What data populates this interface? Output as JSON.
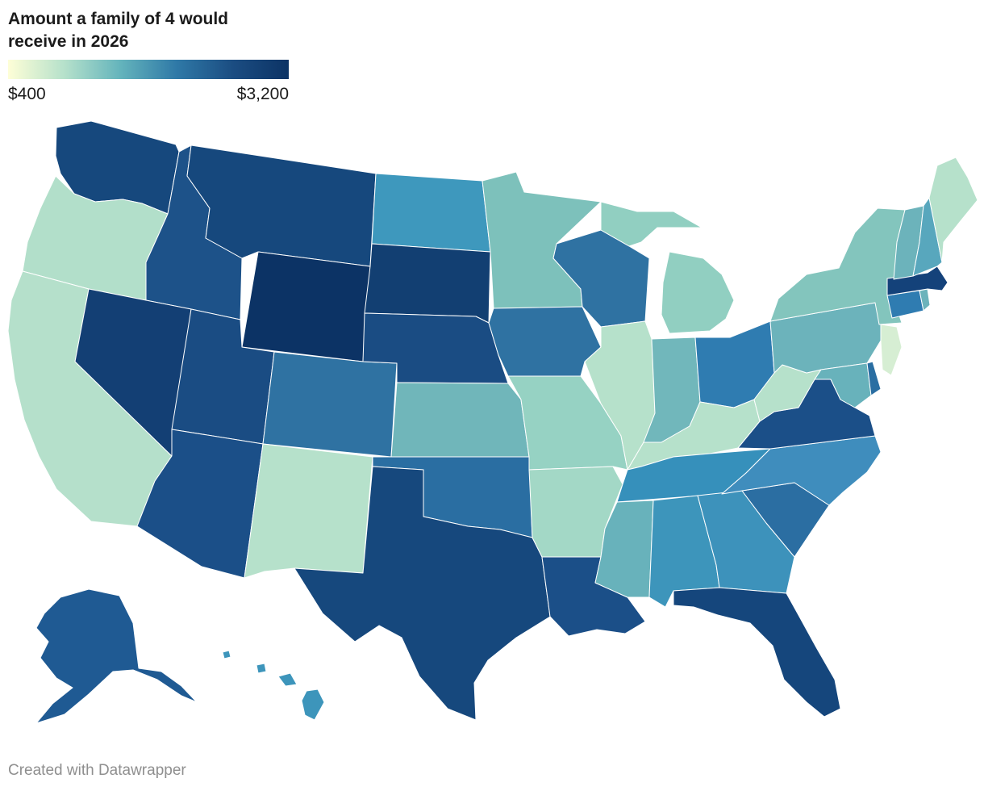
{
  "title": "Amount a family of 4 would receive in 2026",
  "legend": {
    "min_label": "$400",
    "max_label": "$3,200",
    "min_value": 400,
    "max_value": 3200,
    "colors": [
      "#fefed7",
      "#b6e1cb",
      "#64b4bc",
      "#2f79a7",
      "#1b4d82",
      "#0c3365"
    ]
  },
  "credit": "Created with Datawrapper",
  "states": [
    {
      "id": "WA",
      "name": "Washington",
      "fill": "#16487d"
    },
    {
      "id": "OR",
      "name": "Oregon",
      "fill": "#b2dfca"
    },
    {
      "id": "CA",
      "name": "California",
      "fill": "#b5e0cb"
    },
    {
      "id": "ID",
      "name": "Idaho",
      "fill": "#1d5289"
    },
    {
      "id": "NV",
      "name": "Nevada",
      "fill": "#133f74"
    },
    {
      "id": "MT",
      "name": "Montana",
      "fill": "#16487d"
    },
    {
      "id": "WY",
      "name": "Wyoming",
      "fill": "#0c3365"
    },
    {
      "id": "UT",
      "name": "Utah",
      "fill": "#1a4c83"
    },
    {
      "id": "AZ",
      "name": "Arizona",
      "fill": "#1b4f88"
    },
    {
      "id": "CO",
      "name": "Colorado",
      "fill": "#2f72a2"
    },
    {
      "id": "NM",
      "name": "New Mexico",
      "fill": "#b6e1cb"
    },
    {
      "id": "ND",
      "name": "North Dakota",
      "fill": "#3e98bd"
    },
    {
      "id": "SD",
      "name": "South Dakota",
      "fill": "#123f72"
    },
    {
      "id": "NE",
      "name": "Nebraska",
      "fill": "#1a4c83"
    },
    {
      "id": "KS",
      "name": "Kansas",
      "fill": "#70b6ba"
    },
    {
      "id": "OK",
      "name": "Oklahoma",
      "fill": "#2a6ea2"
    },
    {
      "id": "TX",
      "name": "Texas",
      "fill": "#16487d"
    },
    {
      "id": "MN",
      "name": "Minnesota",
      "fill": "#7dc1bb"
    },
    {
      "id": "IA",
      "name": "Iowa",
      "fill": "#2f72a2"
    },
    {
      "id": "MO",
      "name": "Missouri",
      "fill": "#96d2c3"
    },
    {
      "id": "AR",
      "name": "Arkansas",
      "fill": "#a3d8c6"
    },
    {
      "id": "LA",
      "name": "Louisiana",
      "fill": "#1b4f88"
    },
    {
      "id": "WI",
      "name": "Wisconsin",
      "fill": "#2f72a2"
    },
    {
      "id": "IL",
      "name": "Illinois",
      "fill": "#b6e1cb"
    },
    {
      "id": "MI",
      "name": "Michigan",
      "fill": "#91cfc1"
    },
    {
      "id": "IN",
      "name": "Indiana",
      "fill": "#71b7bb"
    },
    {
      "id": "OH",
      "name": "Ohio",
      "fill": "#2f7cb1"
    },
    {
      "id": "KY",
      "name": "Kentucky",
      "fill": "#b6e1cb"
    },
    {
      "id": "TN",
      "name": "Tennessee",
      "fill": "#3690bb"
    },
    {
      "id": "MS",
      "name": "Mississippi",
      "fill": "#68b2bb"
    },
    {
      "id": "AL",
      "name": "Alabama",
      "fill": "#3d95bb"
    },
    {
      "id": "GA",
      "name": "Georgia",
      "fill": "#3d92bb"
    },
    {
      "id": "FL",
      "name": "Florida",
      "fill": "#15467c"
    },
    {
      "id": "SC",
      "name": "South Carolina",
      "fill": "#2b6ea2"
    },
    {
      "id": "NC",
      "name": "North Carolina",
      "fill": "#3f8dbd"
    },
    {
      "id": "VA",
      "name": "Virginia",
      "fill": "#1b4f88"
    },
    {
      "id": "WV",
      "name": "West Virginia",
      "fill": "#b6e1cb"
    },
    {
      "id": "PA",
      "name": "Pennsylvania",
      "fill": "#6cb3bb"
    },
    {
      "id": "NY",
      "name": "New York",
      "fill": "#83c5bd"
    },
    {
      "id": "MD",
      "name": "Maryland",
      "fill": "#68b2bb"
    },
    {
      "id": "DE",
      "name": "Delaware",
      "fill": "#2a6ea2"
    },
    {
      "id": "NJ",
      "name": "New Jersey",
      "fill": "#d6eed3"
    },
    {
      "id": "CT",
      "name": "Connecticut",
      "fill": "#2f7cb1"
    },
    {
      "id": "RI",
      "name": "Rhode Island",
      "fill": "#6cb3bb"
    },
    {
      "id": "MA",
      "name": "Massachusetts",
      "fill": "#14427a"
    },
    {
      "id": "VT",
      "name": "Vermont",
      "fill": "#6cb3bb"
    },
    {
      "id": "NH",
      "name": "New Hampshire",
      "fill": "#58a7bd"
    },
    {
      "id": "ME",
      "name": "Maine",
      "fill": "#b6e1cb"
    },
    {
      "id": "AK",
      "name": "Alaska",
      "fill": "#1f5a93"
    },
    {
      "id": "HI",
      "name": "Hawaii",
      "fill": "#3d95bb"
    }
  ]
}
